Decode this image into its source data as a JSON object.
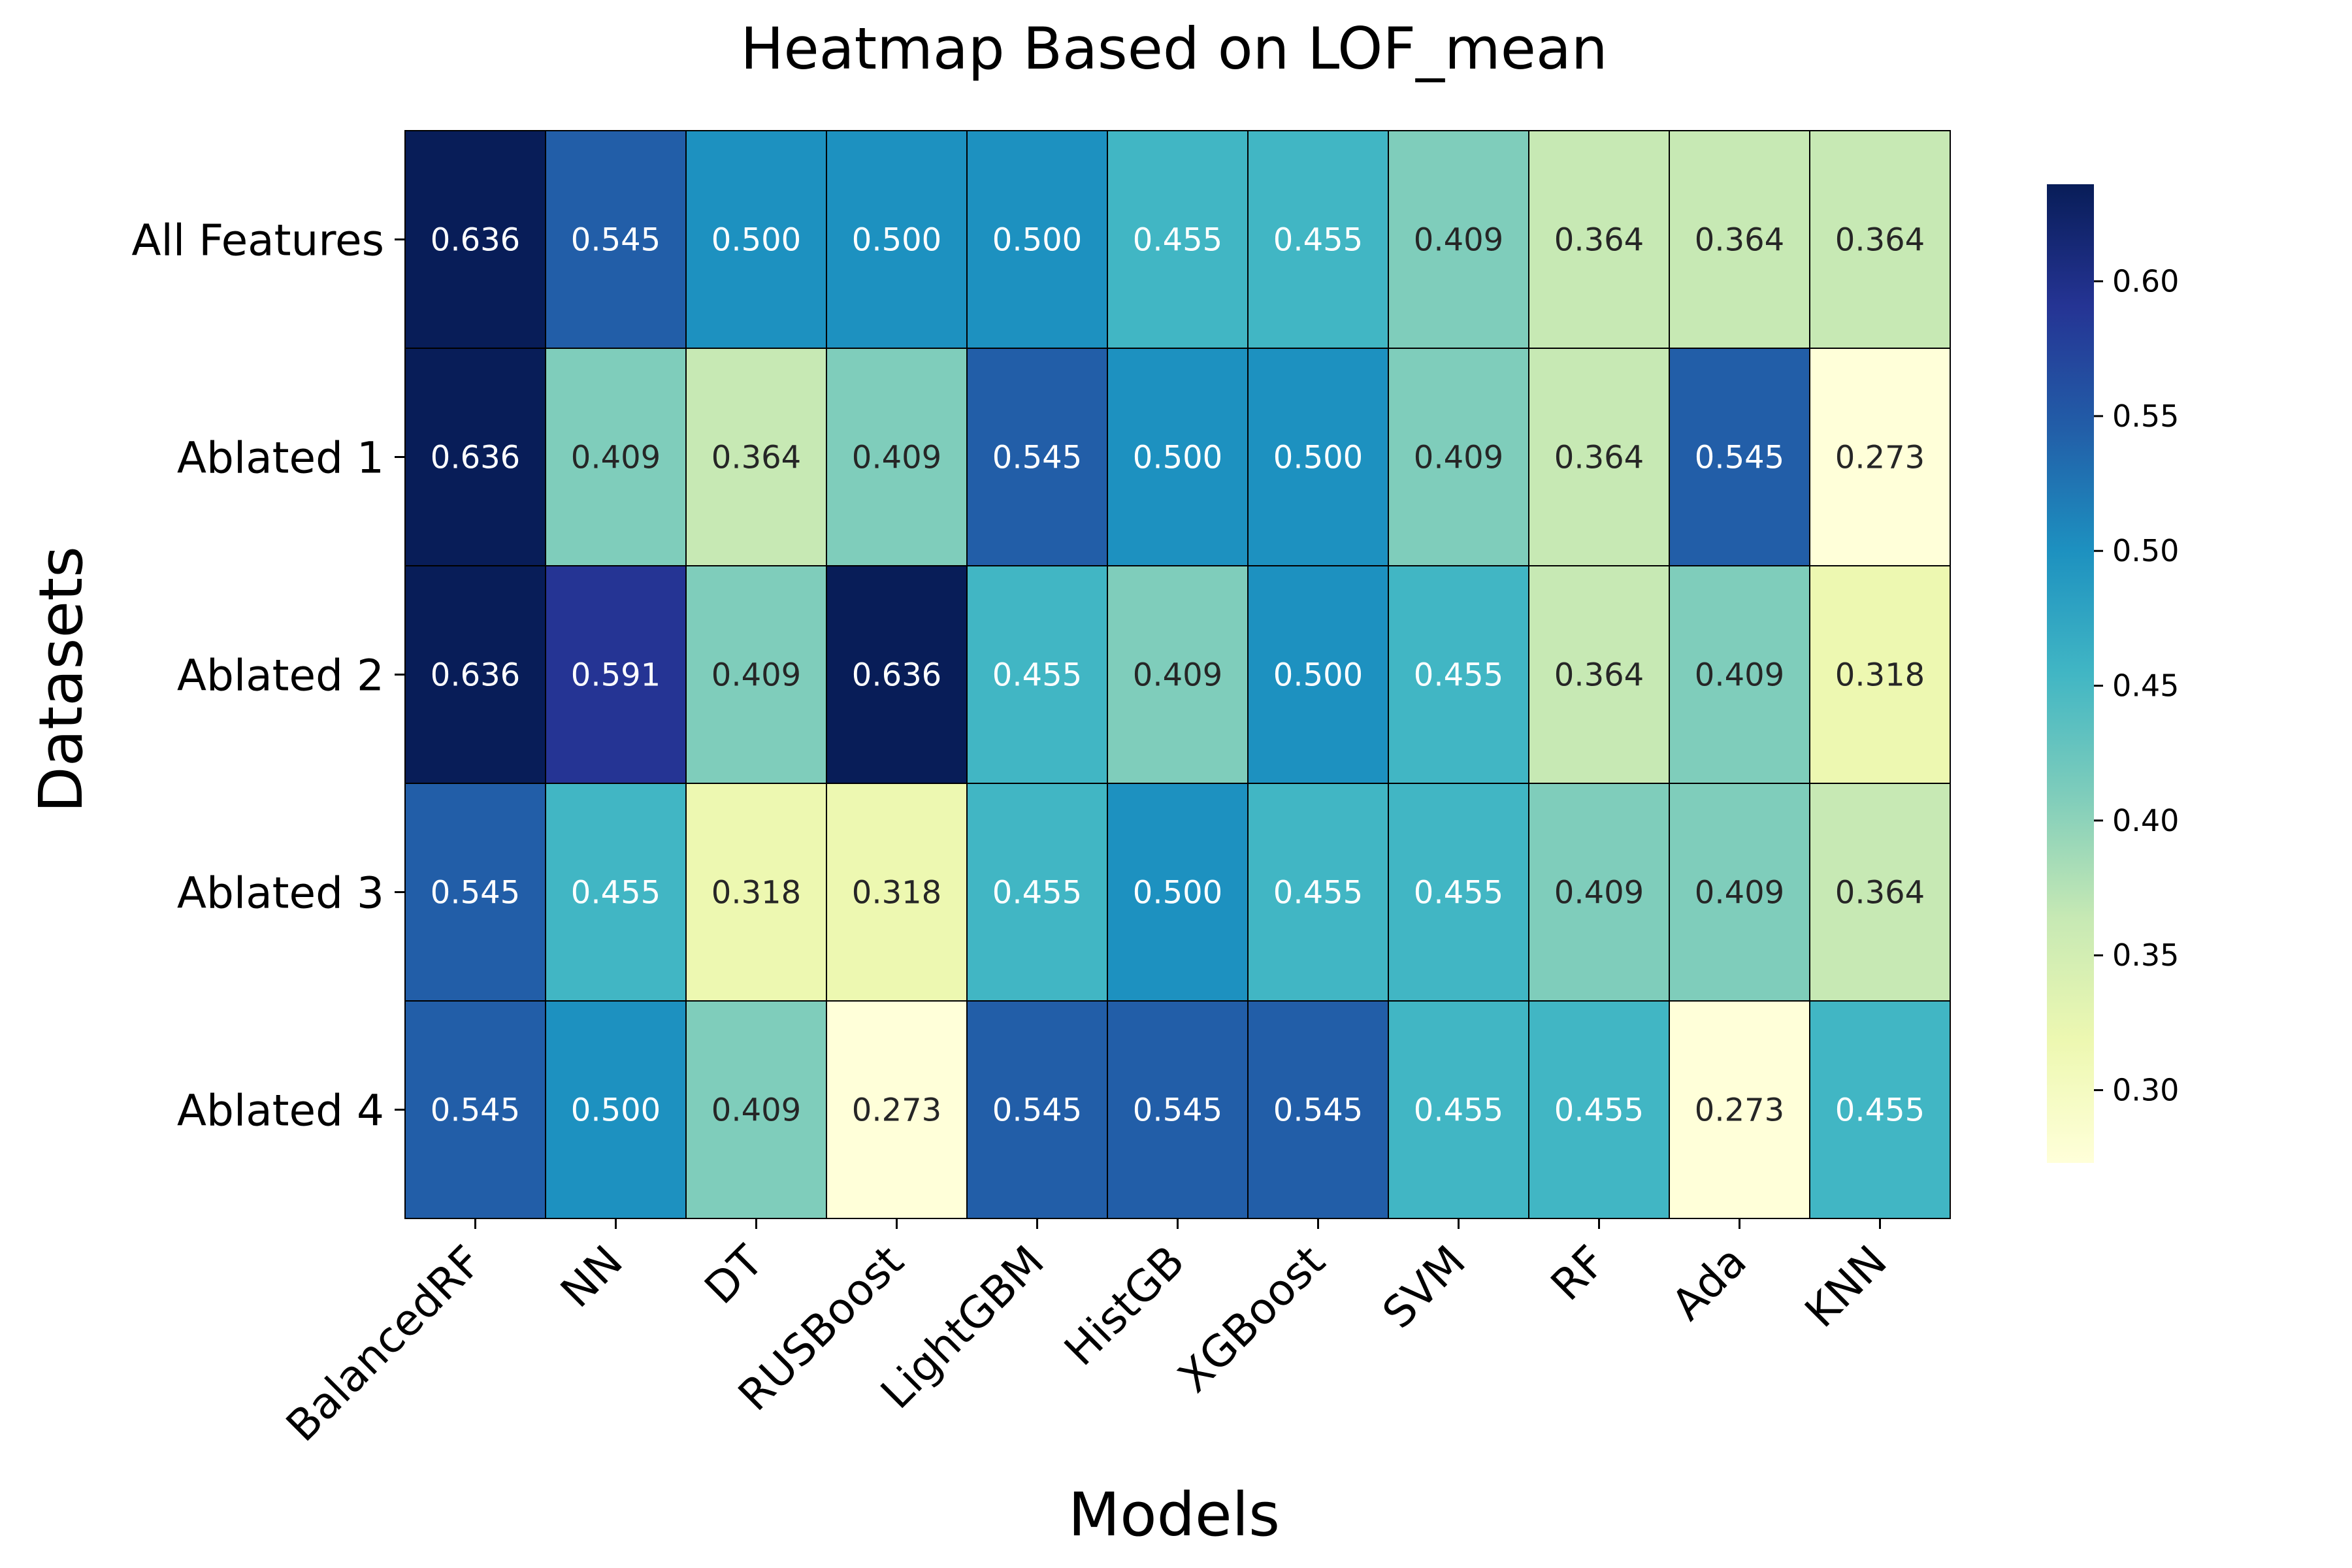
{
  "chart_data": {
    "type": "heatmap",
    "title": "Heatmap Based on LOF_mean",
    "xlabel": "Models",
    "ylabel": "Datasets",
    "x_categories": [
      "BalancedRF",
      "NN",
      "DT",
      "RUSBoost",
      "LightGBM",
      "HistGB",
      "XGBoost",
      "SVM",
      "RF",
      "Ada",
      "KNN"
    ],
    "y_categories": [
      "All Features",
      "Ablated 1",
      "Ablated 2",
      "Ablated 3",
      "Ablated 4"
    ],
    "values": [
      [
        0.636,
        0.545,
        0.5,
        0.5,
        0.5,
        0.455,
        0.455,
        0.409,
        0.364,
        0.364,
        0.364
      ],
      [
        0.636,
        0.409,
        0.364,
        0.409,
        0.545,
        0.5,
        0.5,
        0.409,
        0.364,
        0.545,
        0.273
      ],
      [
        0.636,
        0.591,
        0.409,
        0.636,
        0.455,
        0.409,
        0.5,
        0.455,
        0.364,
        0.409,
        0.318
      ],
      [
        0.545,
        0.455,
        0.318,
        0.318,
        0.455,
        0.5,
        0.455,
        0.455,
        0.409,
        0.409,
        0.364
      ],
      [
        0.545,
        0.5,
        0.409,
        0.273,
        0.545,
        0.545,
        0.545,
        0.455,
        0.455,
        0.273,
        0.455
      ]
    ],
    "colormap": "YlGnBu",
    "vmin": 0.273,
    "vmax": 0.636,
    "colorbar_ticks": [
      0.3,
      0.35,
      0.4,
      0.45,
      0.5,
      0.55,
      0.6
    ],
    "annotation_format": "0.000",
    "legend": "colorbar-right",
    "grid": false
  }
}
